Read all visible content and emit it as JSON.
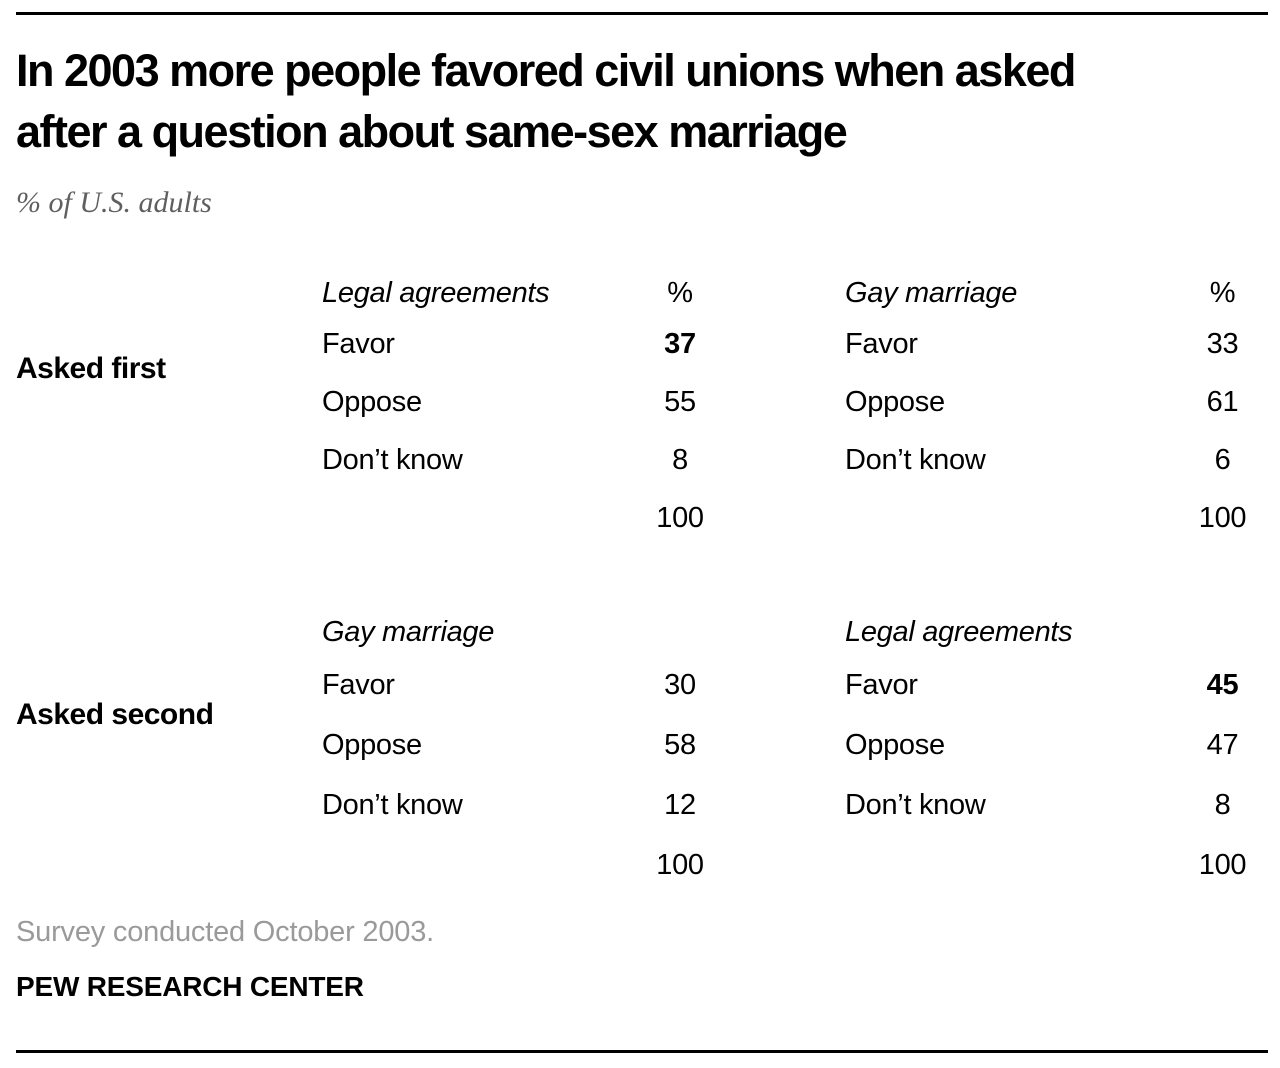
{
  "header": {
    "title_line1": "In 2003 more people favored civil unions when asked",
    "title_line2": "after a question about same-sex marriage",
    "subtitle": "% of U.S. adults"
  },
  "table": {
    "percent_header": "%",
    "sections": [
      {
        "row_label": "Asked first",
        "columns": [
          {
            "header": "Legal agreements",
            "rows": [
              {
                "label": "Favor",
                "value": "37",
                "bold": true
              },
              {
                "label": "Oppose",
                "value": "55"
              },
              {
                "label": "Don’t know",
                "value": "8"
              }
            ],
            "total": "100"
          },
          {
            "header": "Gay marriage",
            "rows": [
              {
                "label": "Favor",
                "value": "33"
              },
              {
                "label": "Oppose",
                "value": "61"
              },
              {
                "label": "Don’t know",
                "value": "6"
              }
            ],
            "total": "100"
          }
        ]
      },
      {
        "row_label": "Asked second",
        "columns": [
          {
            "header": "Gay marriage",
            "rows": [
              {
                "label": "Favor",
                "value": "30"
              },
              {
                "label": "Oppose",
                "value": "58"
              },
              {
                "label": "Don’t know",
                "value": "12"
              }
            ],
            "total": "100"
          },
          {
            "header": "Legal agreements",
            "rows": [
              {
                "label": "Favor",
                "value": "45",
                "bold": true
              },
              {
                "label": "Oppose",
                "value": "47"
              },
              {
                "label": "Don’t know",
                "value": "8"
              }
            ],
            "total": "100"
          }
        ]
      }
    ]
  },
  "footer": {
    "note": "Survey conducted October 2003.",
    "source": "PEW RESEARCH CENTER"
  },
  "colors": {
    "text": "#000000",
    "subtitle_gray": "#5f5f5f",
    "note_gray": "#9a9a9a",
    "rule": "#000000",
    "background": "#ffffff"
  },
  "chart_data": {
    "type": "table",
    "title": "In 2003 more people favored civil unions when asked after a question about same-sex marriage",
    "subtitle": "% of U.S. adults",
    "row_groups": [
      "Asked first",
      "Asked second"
    ],
    "categories": [
      "Favor",
      "Oppose",
      "Don’t know",
      "Total"
    ],
    "series": [
      {
        "name": "Asked first - Legal agreements",
        "values": [
          37,
          55,
          8,
          100
        ]
      },
      {
        "name": "Asked first - Gay marriage",
        "values": [
          33,
          61,
          6,
          100
        ]
      },
      {
        "name": "Asked second - Gay marriage",
        "values": [
          30,
          58,
          12,
          100
        ]
      },
      {
        "name": "Asked second - Legal agreements",
        "values": [
          45,
          47,
          8,
          100
        ]
      }
    ],
    "emphasized_values": [
      {
        "series": "Asked first - Legal agreements",
        "category": "Favor",
        "value": 37
      },
      {
        "series": "Asked second - Legal agreements",
        "category": "Favor",
        "value": 45
      }
    ],
    "note": "Survey conducted October 2003.",
    "source": "PEW RESEARCH CENTER"
  }
}
